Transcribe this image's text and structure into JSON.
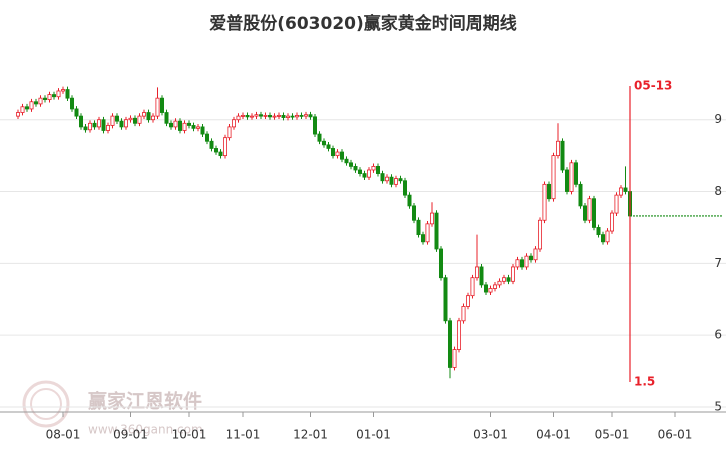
{
  "chart_data": {
    "type": "candlestick",
    "title": "爱普股份(603020)赢家黄金时间周期线",
    "watermark": "赢家江恩软件",
    "watermark_url": "www.360gann.com",
    "marker_date_label": "05-13",
    "marker_value_label": "1.5",
    "reference_line": 7.66,
    "up_color": "#e8202a",
    "down_color": "#138a13",
    "marker_color": "#e8202a",
    "ylim": [
      4.93,
      10.11
    ],
    "yticks": [
      5,
      6,
      7,
      8,
      9
    ],
    "grid": true,
    "categories": [
      null,
      null,
      null,
      null,
      null,
      null,
      null,
      null,
      null,
      null,
      "08-01",
      null,
      null,
      null,
      null,
      null,
      null,
      null,
      null,
      null,
      null,
      null,
      null,
      null,
      null,
      "09-01",
      null,
      null,
      null,
      null,
      null,
      null,
      null,
      null,
      null,
      null,
      null,
      null,
      "10-01",
      null,
      null,
      null,
      null,
      null,
      null,
      null,
      null,
      null,
      null,
      null,
      "11-01",
      null,
      null,
      null,
      null,
      null,
      null,
      null,
      null,
      null,
      null,
      null,
      null,
      null,
      null,
      "12-01",
      null,
      null,
      null,
      null,
      null,
      null,
      null,
      null,
      null,
      null,
      null,
      null,
      null,
      "01-01",
      null,
      null,
      null,
      null,
      null,
      null,
      null,
      null,
      null,
      null,
      null,
      null,
      null,
      null,
      null,
      null,
      null,
      null,
      null,
      null,
      null,
      null,
      null,
      null,
      null,
      "03-01",
      null,
      null,
      null,
      null,
      null,
      null,
      null,
      null,
      null,
      null,
      null,
      null,
      null,
      "04-01",
      null,
      null,
      null,
      null,
      null,
      null,
      null,
      null,
      null,
      null,
      null,
      null,
      "05-01",
      null,
      null,
      null,
      null,
      null,
      null,
      null,
      null,
      null,
      null,
      null,
      null,
      null,
      "06-01"
    ],
    "open": [
      9.05,
      9.1,
      9.18,
      9.15,
      9.25,
      9.22,
      9.3,
      9.28,
      9.35,
      9.32,
      9.4,
      9.42,
      9.3,
      9.15,
      9.05,
      8.9,
      8.86,
      8.95,
      8.9,
      9.0,
      8.85,
      8.92,
      9.05,
      8.98,
      8.9,
      9.0,
      9.02,
      8.95,
      9.05,
      9.1,
      9.0,
      9.05,
      9.3,
      9.1,
      8.95,
      8.9,
      8.98,
      8.85,
      8.95,
      8.92,
      8.88,
      8.9,
      8.8,
      8.7,
      8.6,
      8.55,
      8.5,
      8.75,
      8.9,
      9.0,
      9.05,
      9.06,
      9.04,
      9.05,
      9.07,
      9.05,
      9.06,
      9.04,
      9.05,
      9.06,
      9.03,
      9.05,
      9.04,
      9.06,
      9.05,
      9.07,
      9.04,
      8.8,
      8.7,
      8.65,
      8.6,
      8.5,
      8.55,
      8.45,
      8.4,
      8.35,
      8.3,
      8.25,
      8.2,
      8.3,
      8.35,
      8.25,
      8.15,
      8.2,
      8.1,
      8.18,
      8.15,
      7.95,
      7.8,
      7.6,
      7.4,
      7.3,
      7.55,
      7.7,
      7.2,
      6.8,
      6.2,
      5.55,
      5.8,
      6.2,
      6.4,
      6.55,
      6.8,
      6.95,
      6.7,
      6.6,
      6.65,
      6.7,
      6.75,
      6.8,
      6.75,
      6.95,
      7.05,
      6.95,
      7.1,
      7.05,
      7.2,
      7.6,
      8.1,
      7.9,
      8.5,
      8.7,
      8.3,
      8.0,
      8.4,
      8.1,
      7.8,
      7.6,
      7.9,
      7.5,
      7.4,
      7.3,
      7.45,
      7.7,
      7.95,
      8.05,
      8.0,
      null,
      null,
      null,
      null,
      null,
      null,
      null,
      null,
      null,
      null
    ],
    "high": [
      9.14,
      9.22,
      9.22,
      9.29,
      9.29,
      9.34,
      9.34,
      9.39,
      9.39,
      9.44,
      9.46,
      9.46,
      9.34,
      9.19,
      9.09,
      8.94,
      8.99,
      8.99,
      9.04,
      9.04,
      8.96,
      9.09,
      9.09,
      9.02,
      9.04,
      9.06,
      9.06,
      9.09,
      9.14,
      9.14,
      9.09,
      9.45,
      9.34,
      9.14,
      8.99,
      9.02,
      9.02,
      8.99,
      8.99,
      8.96,
      8.94,
      8.94,
      8.84,
      8.74,
      8.64,
      8.59,
      8.79,
      8.94,
      9.04,
      9.09,
      9.1,
      9.1,
      9.09,
      9.11,
      9.11,
      9.1,
      9.1,
      9.09,
      9.1,
      9.1,
      9.09,
      9.09,
      9.1,
      9.1,
      9.11,
      9.11,
      9.08,
      8.84,
      8.74,
      8.69,
      8.64,
      8.59,
      8.59,
      8.49,
      8.44,
      8.39,
      8.34,
      8.29,
      8.34,
      8.39,
      8.39,
      8.29,
      8.24,
      8.24,
      8.22,
      8.22,
      8.19,
      7.99,
      7.84,
      7.64,
      7.44,
      7.59,
      7.85,
      7.74,
      7.24,
      6.84,
      6.24,
      5.84,
      6.24,
      6.44,
      6.59,
      6.84,
      7.4,
      6.99,
      6.74,
      6.69,
      6.74,
      6.79,
      6.84,
      6.84,
      6.99,
      7.09,
      7.09,
      7.14,
      7.14,
      7.24,
      7.64,
      8.14,
      8.14,
      8.54,
      8.95,
      8.74,
      8.34,
      8.44,
      8.44,
      8.14,
      7.84,
      7.94,
      7.94,
      7.54,
      7.44,
      7.49,
      7.74,
      7.99,
      8.09,
      8.35,
      8.04,
      null,
      null,
      null,
      null,
      null,
      null,
      null,
      null,
      null,
      null
    ],
    "low": [
      9.01,
      9.06,
      9.11,
      9.11,
      9.18,
      9.18,
      9.24,
      9.24,
      9.28,
      9.28,
      9.36,
      9.26,
      9.11,
      9.01,
      8.86,
      8.82,
      8.82,
      8.86,
      8.86,
      8.81,
      8.81,
      8.88,
      8.94,
      8.86,
      8.86,
      8.96,
      8.91,
      8.91,
      9.01,
      8.96,
      8.96,
      9.01,
      9.06,
      8.91,
      8.86,
      8.86,
      8.81,
      8.81,
      8.88,
      8.84,
      8.84,
      8.76,
      8.66,
      8.56,
      8.51,
      8.46,
      8.46,
      8.71,
      8.86,
      8.96,
      9.01,
      9.0,
      9.0,
      9.01,
      9.01,
      9.01,
      9.0,
      9.0,
      9.01,
      8.99,
      8.99,
      9.0,
      9.0,
      9.01,
      9.01,
      9.0,
      8.76,
      8.66,
      8.61,
      8.56,
      8.46,
      8.46,
      8.41,
      8.36,
      8.31,
      8.26,
      8.21,
      8.16,
      8.16,
      8.26,
      8.21,
      8.11,
      8.11,
      8.06,
      8.06,
      8.11,
      7.91,
      7.76,
      7.56,
      7.36,
      7.26,
      7.26,
      7.51,
      7.16,
      6.76,
      6.16,
      5.4,
      5.51,
      5.76,
      6.16,
      6.36,
      6.51,
      6.76,
      6.66,
      6.56,
      6.56,
      6.61,
      6.66,
      6.71,
      6.71,
      6.71,
      6.91,
      6.91,
      6.91,
      7.01,
      7.01,
      7.16,
      7.56,
      7.86,
      7.86,
      8.46,
      8.26,
      7.96,
      7.96,
      8.06,
      7.76,
      7.56,
      7.56,
      7.46,
      7.36,
      7.26,
      7.26,
      7.41,
      7.66,
      7.91,
      7.96,
      7.62,
      null,
      null,
      null,
      null,
      null,
      null,
      null,
      null,
      null,
      null
    ],
    "close": [
      9.1,
      9.18,
      9.15,
      9.25,
      9.22,
      9.3,
      9.28,
      9.35,
      9.32,
      9.4,
      9.42,
      9.3,
      9.15,
      9.05,
      8.9,
      8.86,
      8.95,
      8.9,
      9.0,
      8.85,
      8.92,
      9.05,
      8.98,
      8.9,
      9.0,
      9.02,
      8.95,
      9.05,
      9.1,
      9.0,
      9.05,
      9.3,
      9.1,
      8.95,
      8.9,
      8.98,
      8.85,
      8.95,
      8.92,
      8.88,
      8.9,
      8.8,
      8.7,
      8.6,
      8.55,
      8.5,
      8.75,
      8.9,
      9.0,
      9.05,
      9.06,
      9.04,
      9.05,
      9.07,
      9.05,
      9.06,
      9.04,
      9.05,
      9.06,
      9.03,
      9.05,
      9.04,
      9.06,
      9.05,
      9.07,
      9.04,
      8.8,
      8.7,
      8.65,
      8.6,
      8.5,
      8.55,
      8.45,
      8.4,
      8.35,
      8.3,
      8.25,
      8.2,
      8.3,
      8.35,
      8.25,
      8.15,
      8.2,
      8.1,
      8.18,
      8.15,
      7.95,
      7.8,
      7.6,
      7.4,
      7.3,
      7.55,
      7.7,
      7.2,
      6.8,
      6.2,
      5.55,
      5.8,
      6.2,
      6.4,
      6.55,
      6.8,
      6.95,
      6.7,
      6.6,
      6.65,
      6.7,
      6.75,
      6.8,
      6.75,
      6.95,
      7.05,
      6.95,
      7.1,
      7.05,
      7.2,
      7.6,
      8.1,
      7.9,
      8.5,
      8.7,
      8.3,
      8.0,
      8.4,
      8.1,
      7.8,
      7.6,
      7.9,
      7.5,
      7.4,
      7.3,
      7.45,
      7.7,
      7.95,
      8.05,
      8.0,
      7.66,
      null,
      null,
      null,
      null,
      null,
      null,
      null,
      null,
      null,
      null
    ]
  }
}
